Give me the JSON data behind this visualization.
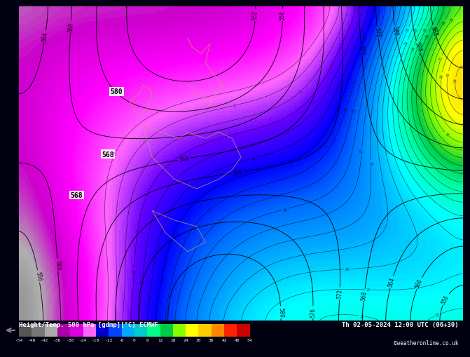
{
  "title_left": "Height/Temp. 500 hPa [gdmp][°C] ECMWF",
  "title_right": "Th 02-05-2024 12:00 UTC (06+30)",
  "credit": "©weatheronline.co.uk",
  "colorbar_ticks": [
    -54,
    -48,
    -42,
    -36,
    -30,
    -24,
    -18,
    -12,
    -6,
    0,
    6,
    12,
    18,
    24,
    30,
    36,
    42,
    48,
    54
  ],
  "colorbar_colors": [
    "#808080",
    "#a0a0a0",
    "#c0c0c0",
    "#9900cc",
    "#cc00ff",
    "#ff66ff",
    "#0000ff",
    "#0066ff",
    "#00ccff",
    "#00ffcc",
    "#00ff66",
    "#00cc00",
    "#ccff00",
    "#ffff00",
    "#ffcc00",
    "#ff6600",
    "#ff0000",
    "#cc0000",
    "#990000"
  ],
  "bg_color": "#000020",
  "fig_bg": "#1a1a2e",
  "main_bg": "#000080"
}
